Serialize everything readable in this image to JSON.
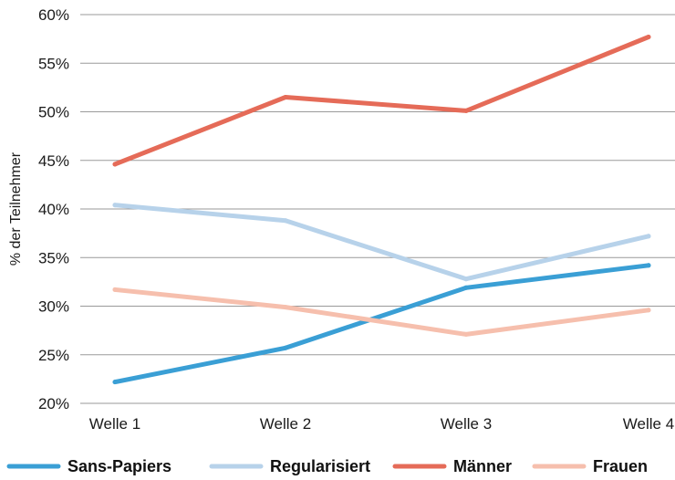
{
  "chart_data": {
    "type": "line",
    "title": "",
    "xlabel": "",
    "ylabel": "% der Teilnehmer",
    "categories": [
      "Welle 1",
      "Welle 2",
      "Welle 3",
      "Welle 4"
    ],
    "ylim": [
      20,
      60
    ],
    "yticks": [
      20,
      25,
      30,
      35,
      40,
      45,
      50,
      55,
      60
    ],
    "ytick_labels": [
      "20%",
      "25%",
      "30%",
      "35%",
      "40%",
      "45%",
      "50%",
      "55%",
      "60%"
    ],
    "grid": "horizontal",
    "legend_position": "bottom",
    "series": [
      {
        "name": "Sans-Papiers",
        "color": "#3a9fd5",
        "values": [
          22.2,
          25.7,
          31.9,
          34.2
        ]
      },
      {
        "name": "Regularisiert",
        "color": "#b7d2ea",
        "values": [
          40.4,
          38.8,
          32.8,
          37.2
        ]
      },
      {
        "name": "Männer",
        "color": "#e56b58",
        "values": [
          44.6,
          51.5,
          50.1,
          57.7
        ]
      },
      {
        "name": "Frauen",
        "color": "#f6bfad",
        "values": [
          31.7,
          29.9,
          27.1,
          29.6
        ]
      }
    ]
  }
}
